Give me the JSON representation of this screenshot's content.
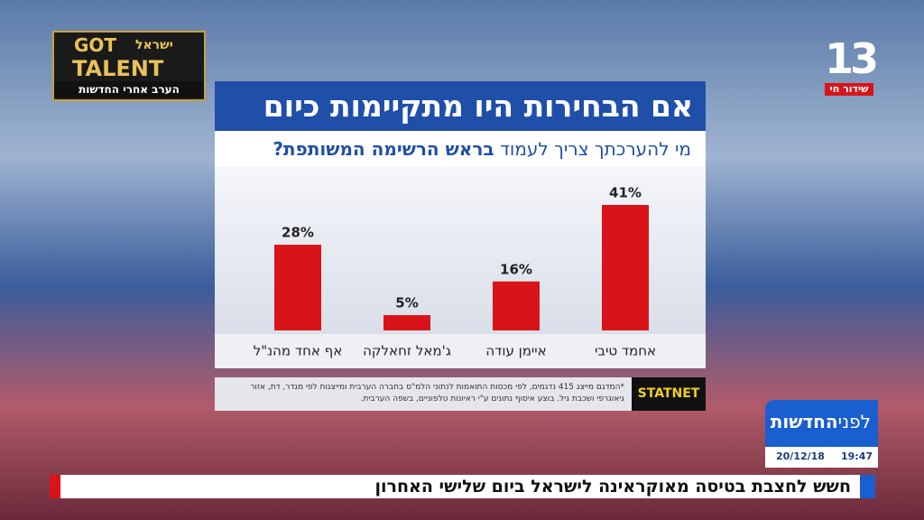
{
  "chart_data": {
    "type": "bar",
    "title": "אם הבחירות היו מתקיימות כיום",
    "subtitle": [
      "מי להערכתך צריך לעמוד",
      "בראש הרשימה המשותפת?"
    ],
    "categories": [
      "אחמד טיבי",
      "איימן עודה",
      "ג'מאל זחאלקה",
      "אף אחד מהנ\"ל"
    ],
    "values": [
      41,
      16,
      5,
      28
    ],
    "value_labels": [
      "41%",
      "16%",
      "5%",
      "28%"
    ],
    "color": "#d8141a",
    "footnote": "*המדגם מייצג 415 נדגמים, לפי מכסות התואמות לנתוני הלמ\"ס בחברה הערבית ומייצגות לפי מגדר, דת, אזור גיאוגרפי ושכבת גיל. בוצע איסוף נתונים ע\"י ראיונות טלפוניים, בשפה הערבית.",
    "source": "STATNET"
  },
  "logo": {
    "line1": "GOT",
    "line2": "TALENT",
    "country": "ישראל",
    "promo": "הערב אחרי החדשות"
  },
  "channel": {
    "number": "13",
    "live": "שידור חי"
  },
  "program": {
    "name_light": "לפני",
    "name_bold": "החדשות",
    "date": "20/12/18",
    "time": "19:47"
  },
  "ticker": "חשש לחצבת בטיסה מאוקראינה לישראל ביום שלישי האחרון"
}
